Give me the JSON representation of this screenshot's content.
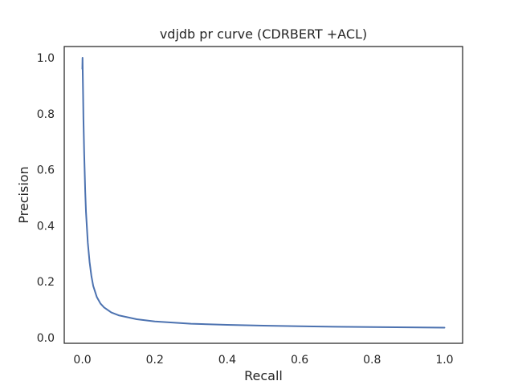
{
  "chart_data": {
    "type": "line",
    "title": "vdjdb pr curve (CDRBERT +ACL)",
    "xlabel": "Recall",
    "ylabel": "Precision",
    "xlim": [
      -0.05,
      1.05
    ],
    "ylim": [
      -0.02,
      1.04
    ],
    "xticks": [
      0.0,
      0.2,
      0.4,
      0.6,
      0.8,
      1.0
    ],
    "yticks": [
      0.0,
      0.2,
      0.4,
      0.6,
      0.8,
      1.0
    ],
    "xtick_labels": [
      "0.0",
      "0.2",
      "0.4",
      "0.6",
      "0.8",
      "1.0"
    ],
    "ytick_labels": [
      "0.0",
      "0.2",
      "0.4",
      "0.6",
      "0.8",
      "1.0"
    ],
    "grid": false,
    "series": [
      {
        "color": "#4c72b0",
        "x": [
          0.0,
          0.0005,
          0.001,
          0.002,
          0.003,
          0.005,
          0.008,
          0.01,
          0.015,
          0.02,
          0.025,
          0.03,
          0.04,
          0.05,
          0.06,
          0.08,
          0.1,
          0.15,
          0.2,
          0.3,
          0.4,
          0.5,
          0.6,
          0.7,
          0.8,
          0.9,
          1.0
        ],
        "y": [
          0.96,
          1.0,
          0.95,
          0.87,
          0.78,
          0.66,
          0.52,
          0.45,
          0.34,
          0.27,
          0.22,
          0.185,
          0.145,
          0.122,
          0.108,
          0.09,
          0.08,
          0.066,
          0.058,
          0.05,
          0.046,
          0.043,
          0.041,
          0.039,
          0.038,
          0.037,
          0.036
        ]
      }
    ]
  }
}
